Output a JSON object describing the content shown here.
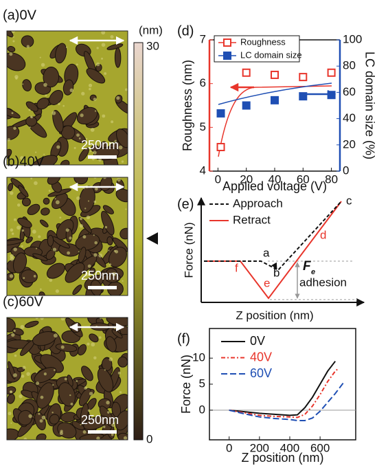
{
  "images": [
    {
      "label": "(a)0V",
      "scale_bar": "250nm"
    },
    {
      "label": "(b)40V",
      "scale_bar": "250nm"
    },
    {
      "label": "(c)60V",
      "scale_bar": "250nm"
    }
  ],
  "colorbar": {
    "unit": "(nm)",
    "ticks": [
      0,
      30
    ]
  },
  "chart_data": [
    {
      "type": "scatter",
      "panel": "(d)",
      "x_label": "Applied voltage (V)",
      "y_label": "Roughness (nm)",
      "y2_label": "LC domain size (%)",
      "xlim": [
        -6,
        86
      ],
      "xticks": [
        0,
        20,
        40,
        60,
        80
      ],
      "ylim": [
        4,
        7
      ],
      "yticks": [
        4,
        5,
        6,
        7
      ],
      "y2lim": [
        0,
        100
      ],
      "y2ticks": [
        0,
        20,
        40,
        60,
        80,
        100
      ],
      "x": [
        2,
        20,
        40,
        60,
        80
      ],
      "series": [
        {
          "name": "Roughness",
          "color": "#e8352b",
          "marker": "hollow-square",
          "values": [
            4.55,
            6.25,
            6.2,
            6.15,
            6.25
          ]
        },
        {
          "name": "LC domain size",
          "color": "#1f4fb4",
          "marker": "filled-square",
          "axis": "y2",
          "values": [
            44,
            50,
            54,
            57,
            58
          ]
        }
      ]
    },
    {
      "type": "schematic",
      "panel": "(e)",
      "x_label": "Z position (nm)",
      "y_label": "Force (nN)",
      "legend": [
        {
          "name": "Approach",
          "color": "#111111"
        },
        {
          "name": "Retract",
          "color": "#e8352b"
        }
      ],
      "points": [
        "a",
        "b",
        "c",
        "d",
        "e",
        "f"
      ],
      "force_symbol": "F",
      "force_subscript": "e",
      "force_label": "adhesion"
    },
    {
      "type": "line",
      "panel": "(f)",
      "x_label": "Z position (nm)",
      "y_label": "Force (nN)",
      "xlim": [
        -130,
        835
      ],
      "xticks": [
        0,
        200,
        400,
        600
      ],
      "ylim": [
        -5.7,
        15.7
      ],
      "yticks": [
        0,
        5,
        10
      ],
      "series": [
        {
          "name": "0V",
          "color": "#111111",
          "dash": "solid",
          "x": [
            0,
            100,
            200,
            300,
            400,
            450,
            500,
            550,
            600,
            650,
            700
          ],
          "values": [
            0,
            -0.3,
            -0.6,
            -0.8,
            -1.0,
            -0.9,
            0.5,
            2.5,
            5.0,
            7.5,
            9.4
          ]
        },
        {
          "name": "40V",
          "color": "#e8352b",
          "dash": "dashdot",
          "x": [
            0,
            100,
            200,
            300,
            400,
            450,
            500,
            550,
            600,
            650,
            700,
            720
          ],
          "values": [
            0,
            -0.5,
            -1.0,
            -1.2,
            -1.3,
            -1.4,
            -0.8,
            0.8,
            3.0,
            5.5,
            7.5,
            8.0
          ]
        },
        {
          "name": "60V",
          "color": "#1f4fb4",
          "dash": "dashed",
          "x": [
            0,
            100,
            200,
            300,
            400,
            450,
            500,
            550,
            600,
            650,
            700,
            760
          ],
          "values": [
            0,
            -0.7,
            -1.3,
            -1.6,
            -1.8,
            -2.0,
            -2.0,
            -1.5,
            -0.2,
            1.5,
            3.2,
            5.5
          ]
        }
      ]
    }
  ]
}
